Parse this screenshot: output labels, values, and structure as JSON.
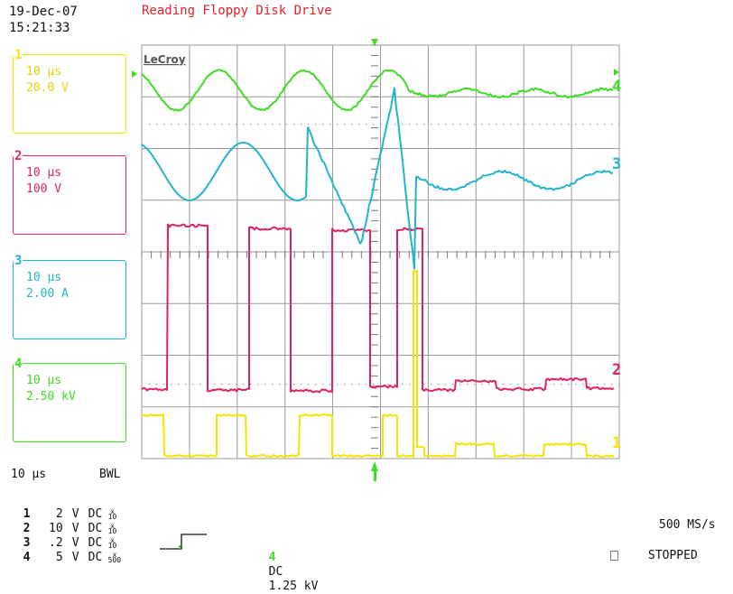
{
  "header": {
    "date": "19-Dec-07",
    "time": "15:21:33",
    "title": "Reading Floppy Disk Drive"
  },
  "brand": "LeCroy",
  "colors": {
    "ch1": "#f5e400",
    "ch2": "#e0206a",
    "ch3": "#22b4c8",
    "ch4": "#3fdc24",
    "grid": "#9a9a9a"
  },
  "channels": [
    {
      "id": "1",
      "time": "10 μs",
      "scale": "20.0 V"
    },
    {
      "id": "2",
      "time": "10 μs",
      "scale": "100 V"
    },
    {
      "id": "3",
      "time": "10 μs",
      "scale": "2.00 A"
    },
    {
      "id": "4",
      "time": "10 μs",
      "scale": "2.50 kV"
    }
  ],
  "timebase": "10 μs",
  "bandwidth_limit": "BWL",
  "input_rows": [
    {
      "n": "1",
      "value": "2",
      "unit": "V",
      "coupling": "DC",
      "probe_x": "x",
      "probe_f": "10"
    },
    {
      "n": "2",
      "value": "10",
      "unit": "V",
      "coupling": "DC",
      "probe_x": "x",
      "probe_f": "10"
    },
    {
      "n": "3",
      "value": ".2",
      "unit": "V",
      "coupling": "DC",
      "probe_x": "x",
      "probe_f": "10"
    },
    {
      "n": "4",
      "value": "5",
      "unit": "V",
      "coupling": "DC",
      "probe_x": "x",
      "probe_f": "500"
    }
  ],
  "trigger": {
    "source": "4",
    "coupling": "DC",
    "level": "1.25 kV"
  },
  "sample_rate": "500 MS/s",
  "status": "STOPPED",
  "trace_labels": {
    "ch1_marker": "1",
    "ch2_marker": "2",
    "ch3_marker": "3",
    "ch4_marker": "4"
  }
}
